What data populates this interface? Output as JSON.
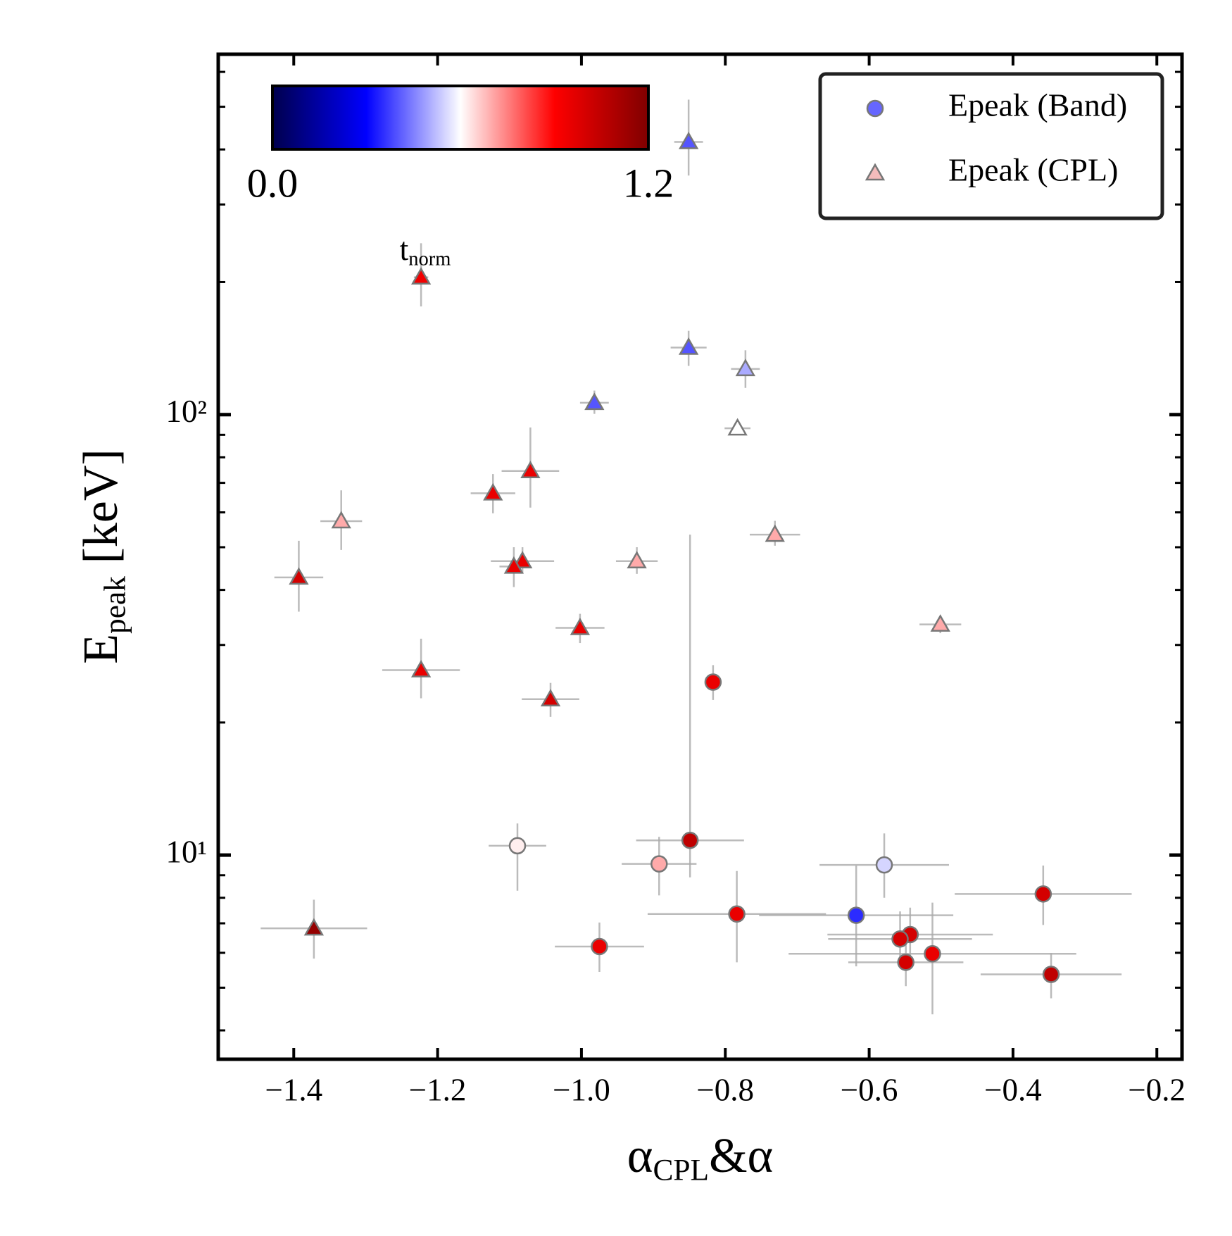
{
  "chart_data": {
    "type": "scatter",
    "xlabel": [
      "α",
      "CPL",
      "&α"
    ],
    "ylabel": [
      "E",
      "peak",
      " [keV]"
    ],
    "xlim": [
      -1.505,
      -0.165
    ],
    "xticks": [
      {
        "value": -1.4,
        "label": "−1.4"
      },
      {
        "value": -1.2,
        "label": "−1.2"
      },
      {
        "value": -1.0,
        "label": "−1.0"
      },
      {
        "value": -0.8,
        "label": "−0.8"
      },
      {
        "value": -0.6,
        "label": "−0.6"
      },
      {
        "value": -0.4,
        "label": "−0.4"
      },
      {
        "value": -0.2,
        "label": "−0.2"
      }
    ],
    "ylim": [
      3.44,
      658
    ],
    "yscale": "log",
    "yticks": [
      {
        "value": 10,
        "label": "10¹"
      },
      {
        "value": 100,
        "label": "10²"
      }
    ],
    "yminorticks": [
      4,
      5,
      6,
      7,
      8,
      9,
      20,
      30,
      40,
      50,
      60,
      70,
      80,
      90,
      200,
      300,
      400,
      500,
      600
    ],
    "colormap": "seismic",
    "clim": [
      0,
      1.2
    ],
    "colorbar_ticks": [
      {
        "value": 0,
        "label": "0.0"
      },
      {
        "value": 1.2,
        "label": "1.2"
      }
    ],
    "colorbar_label": [
      "t",
      "norm"
    ],
    "legend": "upper right",
    "series": [
      {
        "name": "Epeak (Band)",
        "marker": "circle",
        "color": "#6666ff",
        "x": [
          -0.817,
          -0.849,
          -1.089,
          -0.892,
          -0.579,
          -0.358,
          -0.784,
          -0.618,
          -0.543,
          -0.557,
          -0.975,
          -0.512,
          -0.549,
          -0.347
        ],
        "y": [
          24.7,
          10.8,
          10.5,
          9.55,
          9.5,
          8.16,
          7.35,
          7.3,
          6.6,
          6.45,
          6.2,
          5.97,
          5.71,
          5.36
        ],
        "c": [
          0.95,
          1.05,
          0.62,
          0.7,
          0.55,
          1.0,
          0.95,
          0.35,
          1.0,
          1.0,
          0.95,
          0.95,
          1.0,
          1.05
        ],
        "xerr": [
          0.01,
          0.075,
          0.04,
          0.052,
          0.09,
          0.123,
          0.124,
          0.135,
          0.115,
          0.1,
          0.062,
          0.2,
          0.08,
          0.098
        ],
        "yerr_minus": [
          2.2,
          1.9,
          2.2,
          1.45,
          1.5,
          1.22,
          1.64,
          1.71,
          0.8,
          0.8,
          0.77,
          1.62,
          0.67,
          0.63
        ],
        "yerr_plus": [
          2.3,
          42.6,
          1.3,
          1.45,
          1.7,
          1.31,
          1.85,
          2.17,
          1.0,
          1.0,
          0.83,
          1.83,
          1.09,
          0.63
        ]
      },
      {
        "name": "Epeak (CPL)",
        "marker": "triangle",
        "color": "#f4bcbc",
        "x": [
          -0.851,
          -1.223,
          -0.851,
          -0.772,
          -0.982,
          -0.783,
          -1.071,
          -1.123,
          -1.334,
          -0.731,
          -1.082,
          -1.094,
          -0.923,
          -1.393,
          -0.501,
          -1.002,
          -1.223,
          -1.043,
          -1.372
        ],
        "y": [
          416,
          205,
          142,
          127,
          106.4,
          93.1,
          74.5,
          66.3,
          57.3,
          53.4,
          46.5,
          45.2,
          46.5,
          42.7,
          33.4,
          32.8,
          26.3,
          22.6,
          6.82
        ],
        "c": [
          0.4,
          0.93,
          0.4,
          0.5,
          0.4,
          0.6,
          0.95,
          0.95,
          0.7,
          0.7,
          0.95,
          0.95,
          0.7,
          1.0,
          0.7,
          0.95,
          0.95,
          1.0,
          1.15
        ],
        "xerr": [
          0.02,
          0.01,
          0.025,
          0.02,
          0.02,
          0.018,
          0.04,
          0.031,
          0.029,
          0.035,
          0.044,
          0.02,
          0.029,
          0.034,
          0.029,
          0.034,
          0.054,
          0.04,
          0.074
        ],
        "yerr_minus": [
          67,
          29,
          13,
          12,
          6,
          3,
          13,
          6.6,
          8,
          3,
          2.8,
          4.6,
          3,
          7,
          1.5,
          2.5,
          3.6,
          2,
          1
        ],
        "yerr_plus": [
          103,
          40,
          13,
          13,
          7,
          3,
          19,
          7,
          10,
          4,
          3.5,
          4.8,
          3.5,
          9,
          1.5,
          2.5,
          4.7,
          2,
          1.1
        ]
      }
    ]
  }
}
